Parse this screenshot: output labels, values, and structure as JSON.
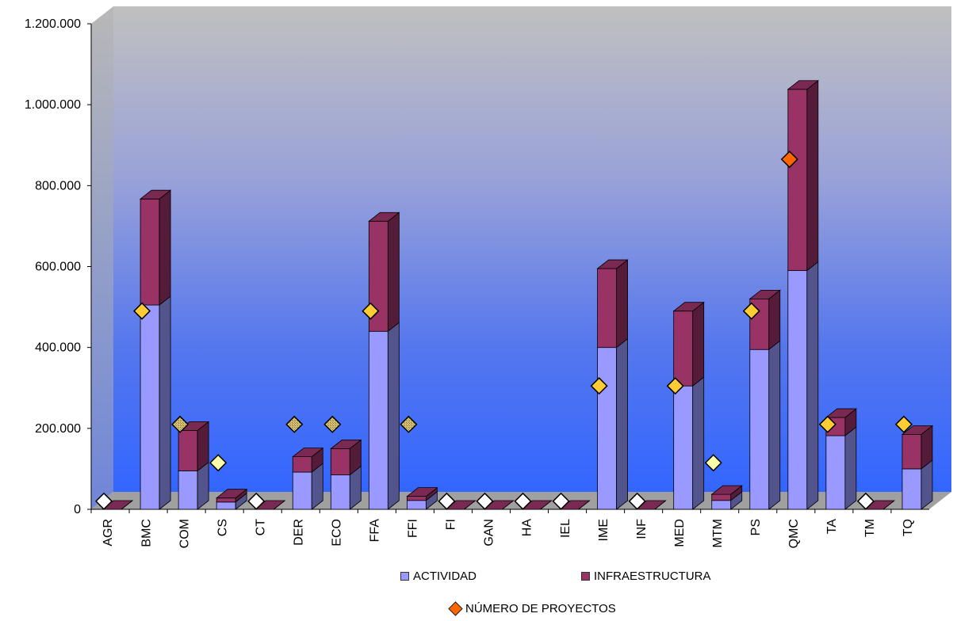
{
  "chart_data": {
    "type": "bar",
    "stacked": true,
    "three_d": true,
    "categories": [
      "AGR",
      "BMC",
      "COM",
      "CS",
      "CT",
      "DER",
      "ECO",
      "FFA",
      "FFI",
      "FI",
      "GAN",
      "HA",
      "IEL",
      "IME",
      "INF",
      "MED",
      "MTM",
      "PS",
      "QMC",
      "TA",
      "TM",
      "TQ"
    ],
    "series": [
      {
        "name": "ACTIVIDAD",
        "color": "#9999ff",
        "values": [
          0,
          505000,
          95000,
          18000,
          0,
          92000,
          85000,
          440000,
          22000,
          0,
          0,
          0,
          0,
          400000,
          0,
          305000,
          22000,
          395000,
          590000,
          182000,
          0,
          100000
        ]
      },
      {
        "name": "INFRAESTRUCTURA",
        "color": "#993366",
        "values": [
          0,
          262000,
          100000,
          10000,
          0,
          38000,
          65000,
          272000,
          10000,
          0,
          0,
          0,
          0,
          195000,
          0,
          185000,
          15000,
          125000,
          448000,
          45000,
          0,
          85000
        ]
      }
    ],
    "markers": {
      "name": "NÚMERO DE PROYECTOS",
      "values": [
        20,
        490,
        210,
        115,
        20,
        210,
        210,
        490,
        210,
        20,
        20,
        20,
        20,
        305,
        20,
        305,
        115,
        490,
        865,
        210,
        20,
        210
      ],
      "colors": [
        "#ffffff",
        "#ffcc33",
        "#c8b060",
        "#ffffaa",
        "#ffffff",
        "#c8b060",
        "#c8b060",
        "#ffcc33",
        "#c8b060",
        "#ffffff",
        "#ffffff",
        "#ffffff",
        "#ffffff",
        "#ffcc33",
        "#ffffff",
        "#ffcc33",
        "#ffffaa",
        "#ffcc33",
        "#ff6600",
        "#ffcc33",
        "#ffffff",
        "#ffcc33"
      ]
    },
    "ylim": [
      0,
      1200000
    ],
    "yticks": [
      0,
      200000,
      400000,
      600000,
      800000,
      1000000,
      1200000
    ],
    "ytick_labels": [
      "0",
      "200.000",
      "400.000",
      "600.000",
      "800.000",
      "1.000.000",
      "1.200.000"
    ],
    "grid": false,
    "legend_position": "bottom"
  }
}
